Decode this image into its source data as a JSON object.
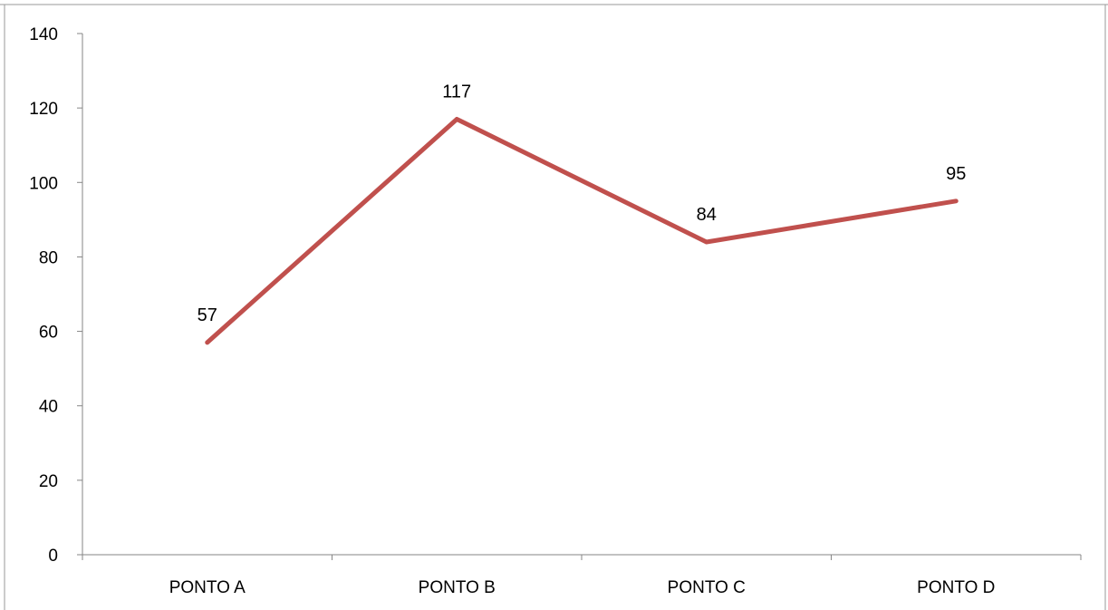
{
  "chart_data": {
    "type": "line",
    "title": "",
    "xlabel": "",
    "ylabel": "",
    "categories": [
      "PONTO A",
      "PONTO B",
      "PONTO C",
      "PONTO D"
    ],
    "series": [
      {
        "values": [
          57,
          117,
          84,
          95
        ],
        "color": "#C0504D"
      }
    ],
    "data_labels": [
      "57",
      "117",
      "84",
      "95"
    ],
    "ylim": [
      0,
      140
    ],
    "y_ticks": [
      0,
      20,
      40,
      60,
      80,
      100,
      120,
      140
    ],
    "grid": false,
    "legend": "none"
  }
}
